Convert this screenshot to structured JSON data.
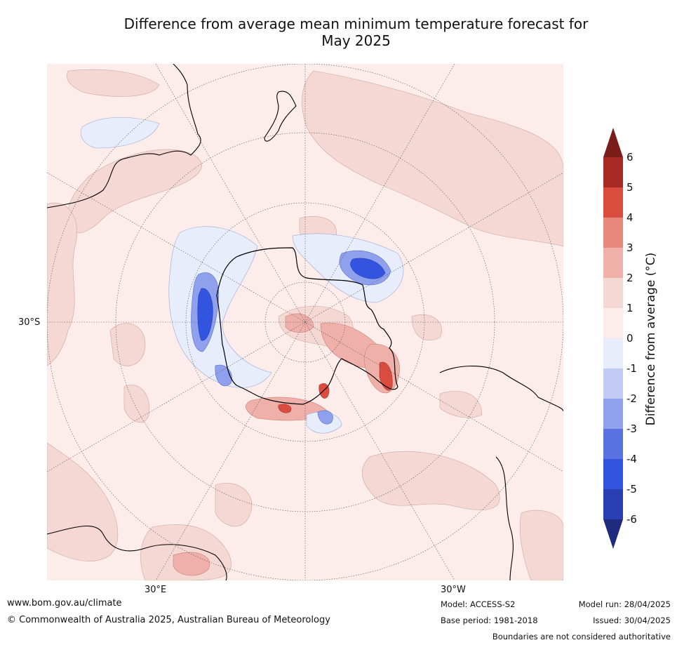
{
  "title_line1": "Difference from average mean minimum temperature forecast for",
  "title_line2": "May 2025",
  "axis": {
    "lat_label": "30°S",
    "lon_label_left": "30°E",
    "lon_label_right": "30°W"
  },
  "colorbar": {
    "label": "Difference from average (°C)",
    "ticks": [
      "6",
      "5",
      "4",
      "3",
      "2",
      "1",
      "0",
      "-1",
      "-2",
      "-3",
      "-4",
      "-5",
      "-6"
    ],
    "bands": [
      "#7b1e19",
      "#a82a24",
      "#d94c3e",
      "#e8877c",
      "#eeb0a9",
      "#f5d8d4",
      "#fcecea",
      "#e8edfb",
      "#c2cbf3",
      "#8fa1ec",
      "#5a73e2",
      "#3254de",
      "#2a3fb3",
      "#1f2b7f"
    ]
  },
  "footer": {
    "website": "www.bom.gov.au/climate",
    "copyright": "© Commonwealth of Australia 2025, Australian Bureau of Meteorology",
    "model": "Model: ACCESS-S2",
    "base_period": "Base period: 1981-2018",
    "model_run": "Model run: 28/04/2025",
    "issued": "Issued: 30/04/2025",
    "disclaimer": "Boundaries are not considered authoritative"
  }
}
